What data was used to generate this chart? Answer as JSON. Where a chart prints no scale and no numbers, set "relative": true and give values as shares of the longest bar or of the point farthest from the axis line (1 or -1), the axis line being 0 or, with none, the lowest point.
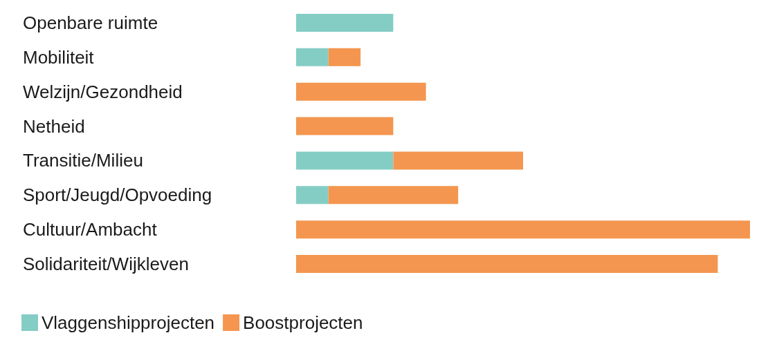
{
  "chart_data": {
    "type": "bar",
    "orientation": "horizontal",
    "stacked": true,
    "relative": true,
    "legend": "bottom left",
    "categories": [
      "Openbare ruimte",
      "Mobiliteit",
      "Welzijn/Gezondheid",
      "Netheid",
      "Transitie/Milieu",
      "Sport/Jeugd/Opvoeding",
      "Cultuur/Ambacht",
      "Solidariteit/Wijkleven"
    ],
    "series": [
      {
        "name": "Vlaggenshipprojecten",
        "color": "#84cdc5",
        "values": [
          0.214,
          0.071,
          0,
          0,
          0.214,
          0.071,
          0,
          0
        ]
      },
      {
        "name": "Boostprojecten",
        "color": "#f4964f",
        "values": [
          0,
          0.071,
          0.286,
          0.214,
          0.286,
          0.286,
          1,
          0.929
        ]
      }
    ]
  }
}
